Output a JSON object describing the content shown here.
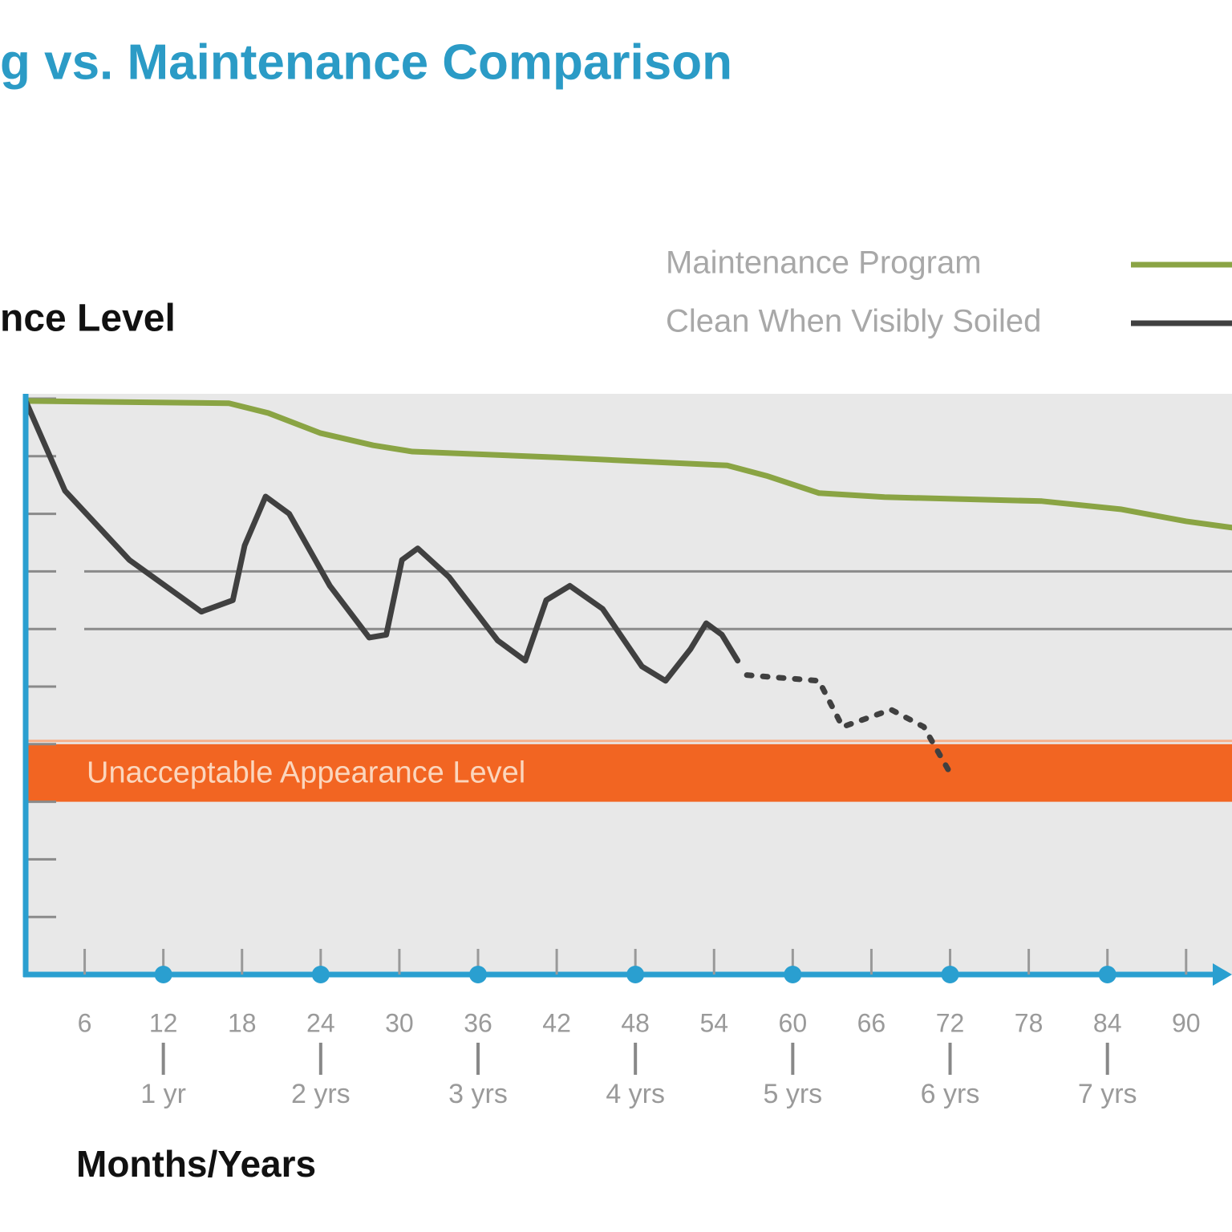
{
  "chart_data": {
    "type": "line",
    "title": "g vs. Maintenance Comparison",
    "y_label": "nce Level",
    "x_label": "Months/Years",
    "xlim": [
      1.5,
      93.5
    ],
    "ylim": [
      0,
      10
    ],
    "yticks": [
      0,
      1,
      2,
      3,
      4,
      5,
      6,
      7,
      8,
      9,
      10
    ],
    "reference_lines": [
      6,
      7
    ],
    "xticks": [
      6,
      12,
      18,
      24,
      30,
      36,
      42,
      48,
      54,
      60,
      66,
      72,
      78,
      84,
      90
    ],
    "year_ticks": [
      {
        "value": 12,
        "label": "1 yr"
      },
      {
        "value": 24,
        "label": "2 yrs"
      },
      {
        "value": 36,
        "label": "3 yrs"
      },
      {
        "value": 48,
        "label": "4 yrs"
      },
      {
        "value": 60,
        "label": "5 yrs"
      },
      {
        "value": 72,
        "label": "6 yrs"
      },
      {
        "value": 84,
        "label": "7 yrs"
      }
    ],
    "band": {
      "from": 3,
      "to": 4,
      "color": "#f26522",
      "label": "Unacceptable Appearance Level"
    },
    "series": [
      {
        "name": "Maintenance Program",
        "color": "#8aa444",
        "x": [
          1.5,
          17,
          20,
          24,
          28,
          31,
          42,
          55,
          58,
          62,
          67,
          79,
          85,
          90,
          93.5
        ],
        "values": [
          9.96,
          9.92,
          9.75,
          9.4,
          9.19,
          9.08,
          8.98,
          8.84,
          8.66,
          8.36,
          8.29,
          8.22,
          8.08,
          7.87,
          7.76
        ]
      },
      {
        "name": "Clean When Visibly Soiled",
        "color": "#404040",
        "x": [
          1.5,
          4.5,
          9.4,
          14.9,
          17.3,
          18.2,
          19.8,
          21.6,
          24.7,
          27.7,
          29,
          30.2,
          31.4,
          33.8,
          37.5,
          39.6,
          41.2,
          43,
          45.5,
          48.5,
          50.3,
          52.2,
          53.4,
          54.6,
          55.8
        ],
        "values": [
          9.96,
          8.4,
          7.2,
          6.3,
          6.5,
          7.45,
          8.3,
          8.0,
          6.75,
          5.85,
          5.9,
          7.2,
          7.4,
          6.9,
          5.8,
          5.45,
          6.5,
          6.75,
          6.35,
          5.35,
          5.1,
          5.65,
          6.1,
          5.9,
          5.45
        ]
      },
      {
        "color": "#404040",
        "style": "dotted",
        "x": [
          56.5,
          62,
          63.8,
          67.5,
          70,
          72
        ],
        "values": [
          5.2,
          5.1,
          4.3,
          4.6,
          4.3,
          3.5
        ]
      }
    ]
  }
}
